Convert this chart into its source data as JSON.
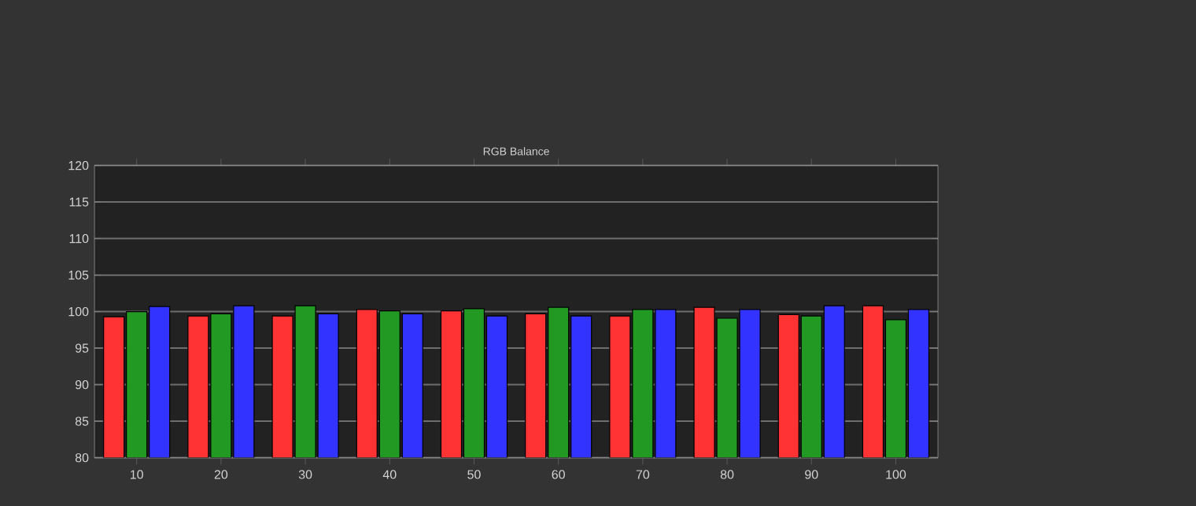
{
  "chart_data": {
    "type": "bar",
    "title": "RGB Balance",
    "categories": [
      "10",
      "20",
      "30",
      "40",
      "50",
      "60",
      "70",
      "80",
      "90",
      "100"
    ],
    "series": [
      {
        "color": "#ff3333",
        "values": [
          99.3,
          99.4,
          99.4,
          100.3,
          100.1,
          99.7,
          99.4,
          100.6,
          99.6,
          100.8
        ]
      },
      {
        "color": "#229922",
        "values": [
          100.0,
          99.7,
          100.8,
          100.1,
          100.4,
          100.6,
          100.3,
          99.1,
          99.4,
          98.9
        ]
      },
      {
        "color": "#3333ff",
        "values": [
          100.7,
          100.8,
          99.7,
          99.7,
          99.4,
          99.4,
          100.3,
          100.3,
          100.8,
          100.3
        ]
      }
    ],
    "ylim": [
      80,
      120
    ],
    "yticks": [
      80,
      85,
      90,
      95,
      100,
      105,
      110,
      115,
      120
    ],
    "grid": "y"
  }
}
